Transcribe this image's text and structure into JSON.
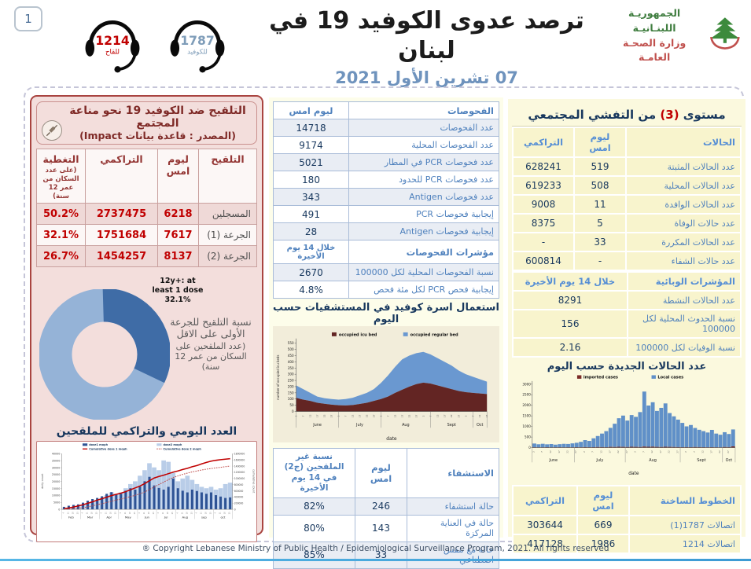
{
  "header": {
    "page_number": "1",
    "vaccine_hotline": {
      "number": "1214",
      "label": "للقاح"
    },
    "covid_hotline": {
      "number": "1787",
      "label": "للكوفيد"
    },
    "title": "ترصد عدوى الكوفيد 19 في لبنان",
    "date": "07 تشرين الأول 2021",
    "ministry_line1": "الجمهوريـة اللبنـانيـة",
    "ministry_line2": "وزارة الصحـة العامـة"
  },
  "vaccination_panel": {
    "title_line1": "التلقيح ضد الكوفيد 19  نحو مناعة المجتمع",
    "title_line2": "(المصدر : قاعدة بيانات Impact)",
    "table": {
      "headers": [
        "التلقيح",
        "ليوم امس",
        "التراكمي",
        "التغطية"
      ],
      "coverage_note": "(على عدد السكان من عمر 12 سنة)",
      "rows": [
        [
          "المسجلين",
          "6218",
          "2737475",
          "50.2%"
        ],
        [
          "الجرعة (1)",
          "7617",
          "1751684",
          "32.1%"
        ],
        [
          "الجرعة (2)",
          "8137",
          "1454257",
          "26.7%"
        ]
      ]
    },
    "donut_callout": "12y+: at least 1 dose 32.1%",
    "donut_caption_1": "نسبة التلقيح للجرعة الأولى على الاقل",
    "donut_caption_2": "(عدد الملقحين على السكان من عمر 12 سنة)",
    "chart_title": "العدد اليومي والتراكمي للملقحين"
  },
  "tests_panel": {
    "tests_table": {
      "headers": [
        "الفحوصات",
        "ليوم امس"
      ],
      "rows": [
        [
          "عدد الفحوصات",
          "14718"
        ],
        [
          "عدد الفحوصات المحلية",
          "9174"
        ],
        [
          "عدد فحوصات PCR في المطار",
          "5021"
        ],
        [
          "عدد فحوصات PCR للحدود",
          "180"
        ],
        [
          "عدد فحوصات Antigen",
          "343"
        ],
        [
          "إيجابية فحوصات PCR",
          "491"
        ],
        [
          "إيجابية فحوصات Antigen",
          "28"
        ]
      ]
    },
    "indicators_table": {
      "headers": [
        "مؤشرات الفحوصات",
        "خلال 14 يوم الأخيرة"
      ],
      "rows": [
        [
          "نسبة الفحوصات المحلية لكل 100000",
          "2670"
        ],
        [
          "إيجابية فحص PCR لكل مئة فحص",
          "4.8%"
        ]
      ]
    },
    "chart_title": "استعمال اسرة كوفيد في المستشفيات حسب اليوم",
    "hospitalization_table": {
      "headers": [
        "الاستشفاء",
        "ليوم امس",
        "نسبة غير الملقحين (ج2) في 14 يوم الأخيرة"
      ],
      "rows": [
        [
          "حالة استشفاء",
          "246",
          "82%"
        ],
        [
          "حالة في العناية المركزة",
          "143",
          "80%"
        ],
        [
          "حالة مع تنفس اصطناعي",
          "33",
          "85%"
        ]
      ]
    }
  },
  "cases_panel": {
    "title_pre": "مستوى ",
    "title_level": "(3)",
    "title_post": " من التفشي المجتمعي",
    "cases_table": {
      "headers": [
        "الحالات",
        "ليوم امس",
        "التراكمي"
      ],
      "rows": [
        [
          "عدد الحالات المثبتة",
          "519",
          "628241"
        ],
        [
          "عدد الحالات المحلية",
          "508",
          "619233"
        ],
        [
          "عدد الحالات الوافدة",
          "11",
          "9008"
        ],
        [
          "عدد حالات الوفاة",
          "5",
          "8375"
        ],
        [
          "عدد الحالات المكررة",
          "33",
          "-"
        ],
        [
          "عدد حالات الشفاء",
          "-",
          "600814"
        ]
      ]
    },
    "epi_table": {
      "headers": [
        "المؤشرات الوبائية",
        "خلال 14 يوم الأخيرة"
      ],
      "rows": [
        [
          "عدد الحالات النشطة",
          "8291"
        ],
        [
          "نسبة الحدوث المحلية لكل 100000",
          "156"
        ],
        [
          "نسبة الوفيات لكل 100000",
          "2.16"
        ]
      ]
    },
    "chart_title": "عدد الحالات الجديدة حسب اليوم",
    "hotline_table": {
      "headers": [
        "الخطوط الساخنة",
        "ليوم امس",
        "التراكمي"
      ],
      "rows": [
        [
          "اتصالات 1787(1)",
          "669",
          "303644"
        ],
        [
          "اتصالات 1214",
          "1986",
          "417128"
        ]
      ]
    }
  },
  "footer": "® Copyright Lebanese Ministry of Public Health / Epidemiological Surveillance Program, 2021. All rights reserved",
  "colors": {
    "accent_red": "#c00000",
    "navy": "#17375d",
    "steel_blue": "#4f81bd",
    "panel_pink": "#f3dedc",
    "panel_yellow": "#fbf9de"
  },
  "chart_data": [
    {
      "id": "first_dose_donut",
      "type": "pie",
      "donut": true,
      "labels": [
        "12y+: at least 1 dose 32.1%",
        "remainder"
      ],
      "values": [
        32.1,
        67.9
      ],
      "colors": [
        "#3f6ca6",
        "#95b3d7"
      ]
    },
    {
      "id": "vaccinations",
      "type": "bar",
      "title": "العدد اليومي والتراكمي للملقحين",
      "x_months": [
        "Feb",
        "Mar",
        "Apr",
        "May",
        "Jun",
        "Jul",
        "Aug",
        "sep",
        "oct"
      ],
      "ylabel_left": "daily count",
      "ylabel_right": "cumulative count",
      "ylim_left": [
        0,
        40000
      ],
      "ylim_right": [
        0,
        1800000
      ],
      "day_tick_cycle": [
        4,
        11,
        18,
        25
      ],
      "series": [
        {
          "name": "dose1  moph",
          "type": "bar",
          "color": "#2e5395",
          "values": [
            1800,
            2600,
            3200,
            3600,
            4800,
            6200,
            7400,
            8200,
            9400,
            11200,
            12400,
            10400,
            11200,
            13400,
            15200,
            14200,
            16400,
            20200,
            23400,
            17200,
            15400,
            14200,
            16200,
            22200,
            15200,
            13400,
            12200,
            14200,
            13200,
            12200,
            11200,
            12200,
            10200,
            9200,
            8200,
            8600
          ]
        },
        {
          "name": "dose2 moph",
          "type": "bar",
          "color": "#b9cde8",
          "values": [
            300,
            600,
            1100,
            2100,
            3100,
            4200,
            5200,
            6200,
            8200,
            10200,
            12200,
            11200,
            12200,
            15200,
            18200,
            20200,
            24200,
            28200,
            33200,
            30200,
            28200,
            35200,
            34200,
            26200,
            20200,
            22200,
            24200,
            21200,
            18200,
            16200,
            15200,
            16200,
            14200,
            15200,
            18200,
            19200
          ]
        },
        {
          "name": "Cumulative dose 1 moph",
          "type": "line",
          "color": "#c00000",
          "values": [
            20000,
            45000,
            75000,
            110000,
            150000,
            195000,
            245000,
            300000,
            345000,
            395000,
            445000,
            485000,
            525000,
            575000,
            635000,
            695000,
            755000,
            835000,
            925000,
            1015000,
            1065000,
            1105000,
            1155000,
            1205000,
            1245000,
            1290000,
            1330000,
            1380000,
            1420000,
            1470000,
            1520000,
            1560000,
            1590000,
            1610000,
            1625000,
            1640000
          ]
        },
        {
          "name": "Cumulative dose 2 moph",
          "type": "line-dotted",
          "color": "#bf4d4b",
          "values": [
            3000,
            8000,
            18000,
            33000,
            53000,
            83000,
            113000,
            153000,
            183000,
            223000,
            263000,
            303000,
            333000,
            373000,
            413000,
            453000,
            503000,
            563000,
            643000,
            723000,
            803000,
            883000,
            963000,
            1033000,
            1083000,
            1133000,
            1173000,
            1213000,
            1243000,
            1273000,
            1303000,
            1323000,
            1343000,
            1363000,
            1383000,
            1400000
          ]
        }
      ]
    },
    {
      "id": "hospital_beds",
      "type": "area",
      "title": "استعمال اسرة كوفيد في المستشفيات حسب اليوم",
      "xlabel": "date",
      "ylabel": "number of occupied icu beds",
      "ylim": [
        0,
        550
      ],
      "ytick": 50,
      "months": [
        "June",
        "July",
        "Aug",
        "Sept",
        "Oct"
      ],
      "month_counts": [
        6,
        6,
        7,
        6,
        3
      ],
      "day_tick_cycle": [
        2,
        7,
        12,
        17,
        22,
        27
      ],
      "series": [
        {
          "name": "occupied icu bed",
          "color": "#632523",
          "values": [
            110,
            95,
            85,
            70,
            62,
            55,
            50,
            48,
            52,
            60,
            70,
            85,
            100,
            120,
            150,
            175,
            200,
            220,
            232,
            225,
            210,
            195,
            180,
            165,
            155,
            150,
            145,
            140
          ]
        },
        {
          "name": "occupied regular bed",
          "color": "#6a98d0",
          "values": [
            100,
            85,
            65,
            50,
            45,
            45,
            45,
            52,
            58,
            70,
            80,
            95,
            130,
            170,
            210,
            245,
            250,
            250,
            248,
            235,
            220,
            205,
            190,
            165,
            145,
            130,
            115,
            100
          ]
        }
      ]
    },
    {
      "id": "new_cases",
      "type": "bar",
      "title": "عدد الحالات الجديدة حسب اليوم",
      "xlabel": "date",
      "ylim": [
        0,
        3000
      ],
      "ytick": 500,
      "months": [
        "June",
        "July",
        "Aug",
        "Sept",
        "Oct"
      ],
      "month_counts": [
        10,
        12,
        13,
        10,
        3
      ],
      "day_tick_cycle": [
        2,
        7,
        12,
        17,
        22,
        27
      ],
      "series": [
        {
          "name": "imported cases",
          "color": "#7b2a26",
          "values": [
            15,
            10,
            12,
            18,
            10,
            12,
            15,
            10,
            14,
            12,
            20,
            15,
            25,
            18,
            22,
            30,
            25,
            20,
            35,
            30,
            40,
            35,
            30,
            40,
            35,
            30,
            50,
            40,
            45,
            35,
            30,
            40,
            35,
            30,
            25,
            20,
            25,
            20,
            30,
            25,
            20,
            15,
            20,
            15,
            10,
            30,
            25,
            60
          ]
        },
        {
          "name": "Local cases",
          "color": "#6090c8",
          "values": [
            180,
            150,
            170,
            140,
            160,
            130,
            150,
            170,
            160,
            190,
            210,
            260,
            330,
            300,
            420,
            520,
            640,
            760,
            900,
            1100,
            1350,
            1480,
            1250,
            1500,
            1420,
            1650,
            2600,
            1950,
            2100,
            1700,
            1850,
            2050,
            1600,
            1450,
            1300,
            1150,
            980,
            1050,
            900,
            820,
            760,
            700,
            820,
            650,
            600,
            700,
            620,
            800
          ]
        }
      ]
    }
  ]
}
